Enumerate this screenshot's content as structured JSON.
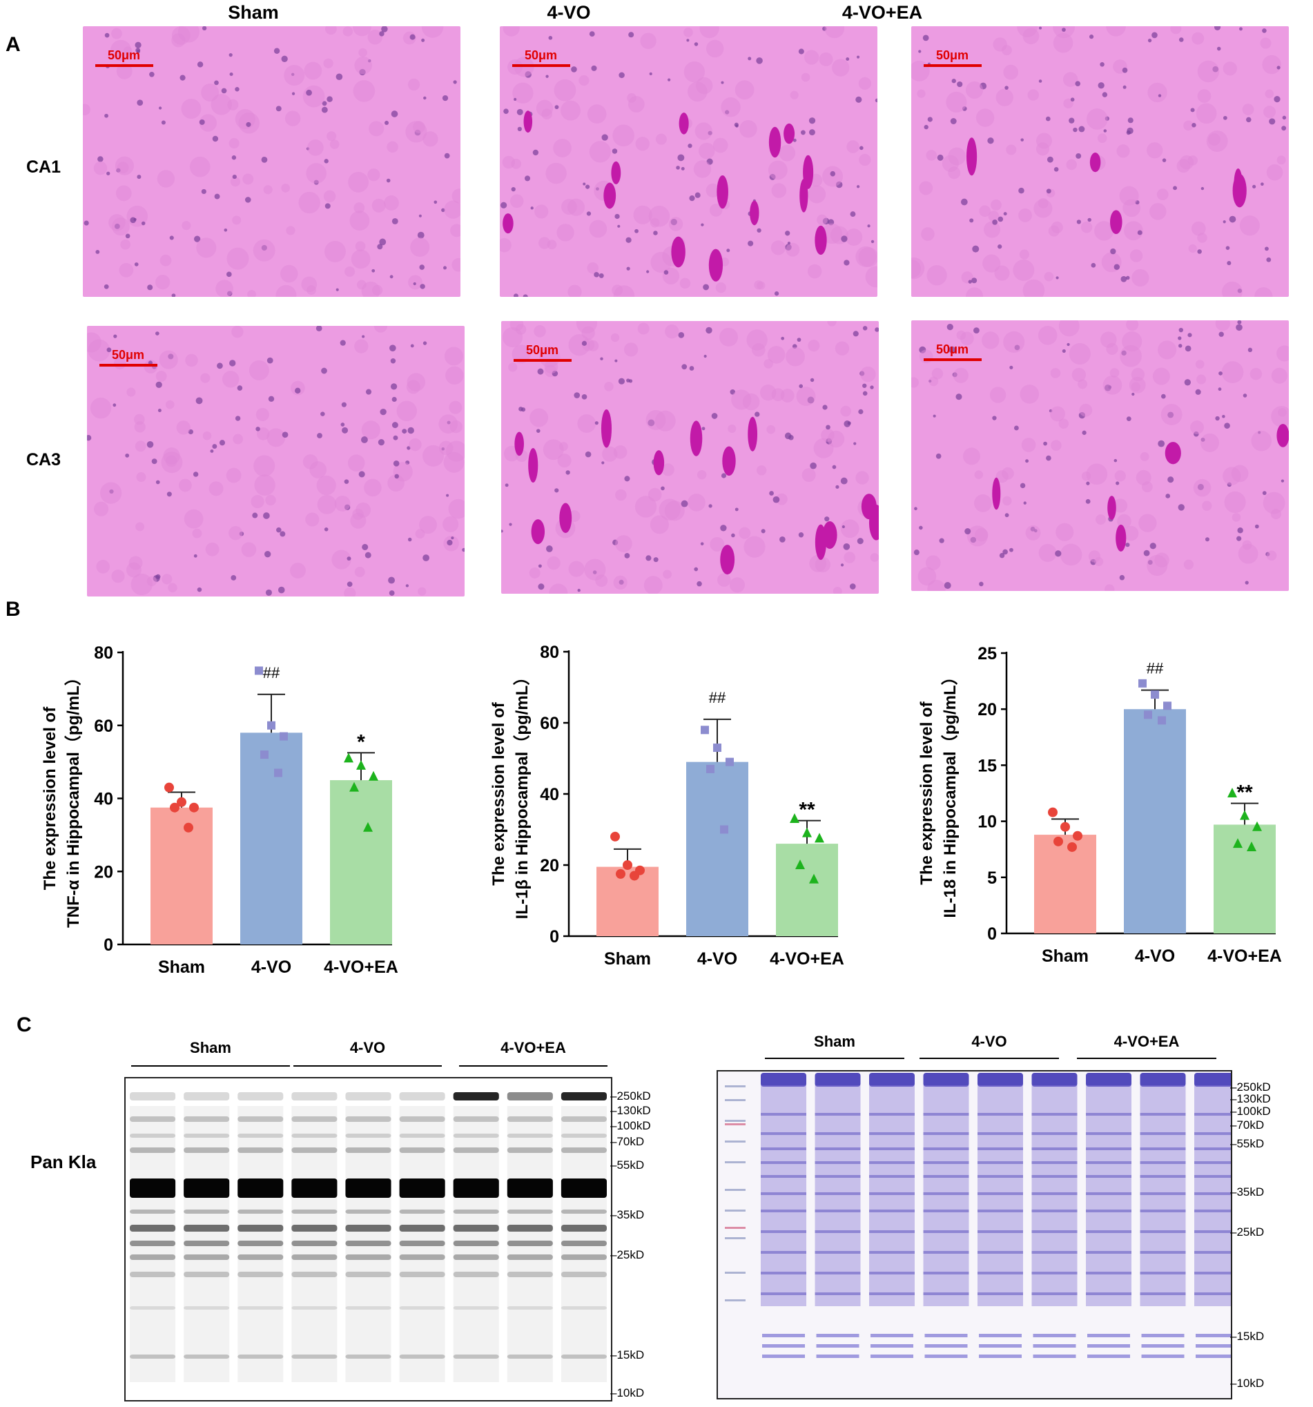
{
  "panels": {
    "a": "A",
    "b": "B",
    "c": "C"
  },
  "histology": {
    "columns": [
      "Sham",
      "4-VO",
      "4-VO+EA"
    ],
    "rows": [
      "CA1",
      "CA3"
    ],
    "scale_bar": "50μm"
  },
  "group_labels": [
    "Sham",
    "4-VO",
    "4-VO+EA"
  ],
  "colors": {
    "sham": "#F8A19A",
    "vo": "#8FACD6",
    "vo_ea": "#A8DDA5",
    "sham_dot": "#E8443A",
    "vo_dot": "#8C8CCF",
    "vo_ea_dot": "#1DB31D",
    "scale_bar": "#E00000",
    "stain": "#EC9CE2"
  },
  "chart_data": [
    {
      "type": "bar",
      "title": "",
      "ylabel": "The expression level of TNF-α in Hippocampal（pg/mL）",
      "ylabel_lines": [
        "The expression level of",
        "TNF-α in Hippocampal（pg/mL）"
      ],
      "categories": [
        "Sham",
        "4-VO",
        "4-VO+EA"
      ],
      "values": [
        37.5,
        58,
        45
      ],
      "errors": [
        4.2,
        10.5,
        7.5
      ],
      "points": [
        [
          43,
          39,
          37.5,
          37.5,
          32
        ],
        [
          75,
          60,
          57,
          52,
          47
        ],
        [
          51,
          49,
          46,
          43,
          32
        ]
      ],
      "annotations": [
        "",
        "##",
        "*"
      ],
      "ylim": [
        0,
        80
      ],
      "yticks": [
        0,
        20,
        40,
        60,
        80
      ],
      "ytick_labels": [
        "0",
        "20",
        "40",
        "60",
        "80"
      ]
    },
    {
      "type": "bar",
      "title": "",
      "ylabel": "The expression level of IL-1β in Hippocampal（pg/mL）",
      "ylabel_lines": [
        "The expression level of",
        "IL-1β in Hippocampal（pg/mL）"
      ],
      "categories": [
        "Sham",
        "4-VO",
        "4-VO+EA"
      ],
      "values": [
        19.5,
        49,
        26
      ],
      "errors": [
        5,
        12,
        6.5
      ],
      "points": [
        [
          28,
          20,
          18.5,
          17.5,
          17
        ],
        [
          58,
          53,
          49,
          47,
          30
        ],
        [
          33,
          29,
          27.5,
          20,
          16
        ]
      ],
      "annotations": [
        "",
        "##",
        "**"
      ],
      "ylim": [
        0,
        80
      ],
      "yticks": [
        0,
        20,
        40,
        60,
        80
      ],
      "ytick_labels": [
        "0",
        "20",
        "40",
        "60",
        "80"
      ]
    },
    {
      "type": "bar",
      "title": "",
      "ylabel": "The expression level of IL-18 in Hippocampal（pg/mL）",
      "ylabel_lines": [
        "The expression level of",
        "IL-18 in Hippocampal（pg/mL）"
      ],
      "categories": [
        "Sham",
        "4-VO",
        "4-VO+EA"
      ],
      "values": [
        8.8,
        20,
        9.7
      ],
      "errors": [
        1.4,
        1.7,
        1.9
      ],
      "points": [
        [
          10.8,
          9.5,
          8.7,
          8.2,
          7.7
        ],
        [
          22.3,
          21.3,
          20.3,
          19.5,
          19
        ],
        [
          12.5,
          10.5,
          9.5,
          8,
          7.7
        ]
      ],
      "annotations": [
        "",
        "##",
        "**"
      ],
      "ylim": [
        0,
        25
      ],
      "yticks": [
        0,
        5,
        10,
        15,
        20,
        25
      ],
      "ytick_labels": [
        "0",
        "5",
        "10",
        "15",
        "20",
        "25"
      ]
    }
  ],
  "blots": {
    "antibody": "Pan Kla",
    "groups": [
      "Sham",
      "4-VO",
      "4-VO+EA"
    ],
    "left_markers": [
      "250kD",
      "130kD",
      "100kD",
      "70kD",
      "55kD",
      "35kD",
      "25kD",
      "15kD",
      "10kD"
    ],
    "right_markers": [
      "250kD",
      "130kD",
      "100kD",
      "70kD",
      "55kD",
      "35kD",
      "25kD",
      "15kD",
      "10kD"
    ]
  }
}
